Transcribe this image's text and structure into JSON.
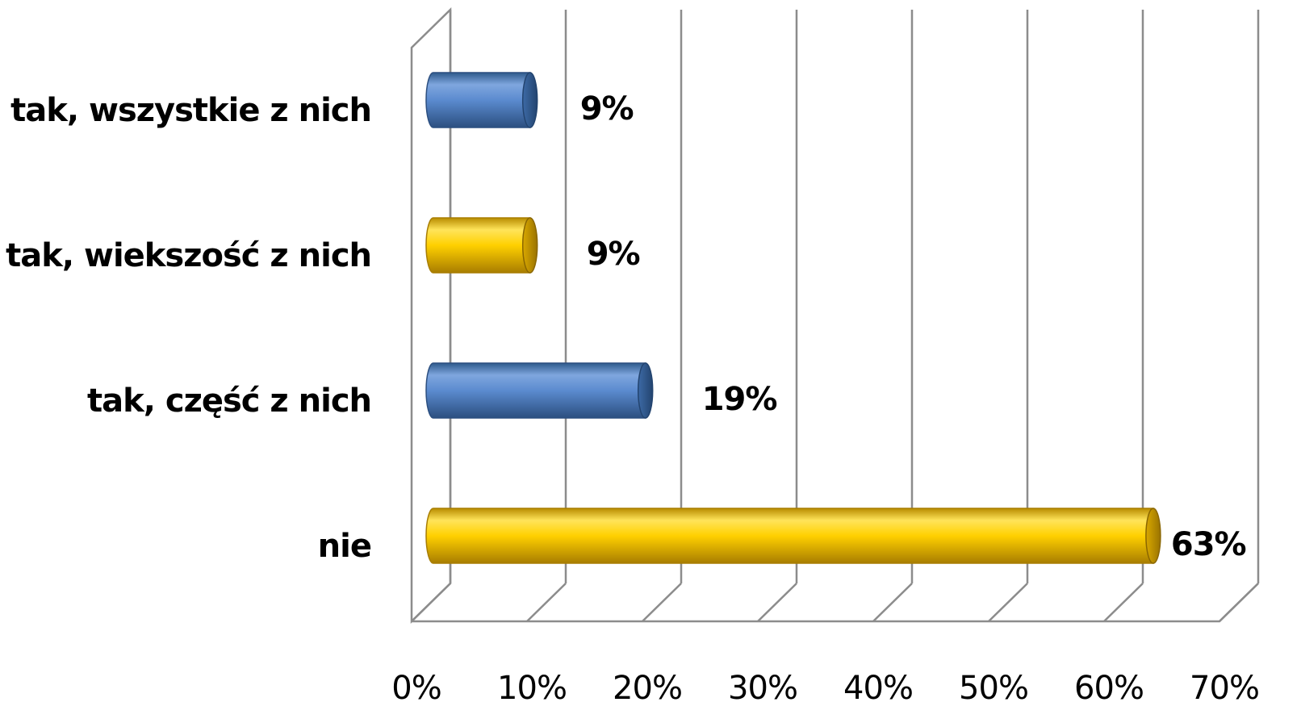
{
  "chart_data": {
    "type": "bar",
    "orientation": "horizontal",
    "style": "3d-cylinder",
    "categories": [
      "tak, wszystkie z nich",
      "tak, wiekszość z nich",
      "tak, część z nich",
      "nie"
    ],
    "values": [
      9,
      9,
      19,
      63
    ],
    "value_labels": [
      "9%",
      "9%",
      "19%",
      "63%"
    ],
    "bar_colors": [
      "#4f81bd",
      "#ffc000",
      "#4f81bd",
      "#ffc000"
    ],
    "xlim": [
      0,
      70
    ],
    "x_ticks": [
      0,
      10,
      20,
      30,
      40,
      50,
      60,
      70
    ],
    "x_tick_labels": [
      "0%",
      "10%",
      "20%",
      "30%",
      "40%",
      "50%",
      "60%",
      "70%"
    ],
    "grid": true,
    "legend": "none",
    "title": "",
    "xlabel": "",
    "ylabel": ""
  }
}
